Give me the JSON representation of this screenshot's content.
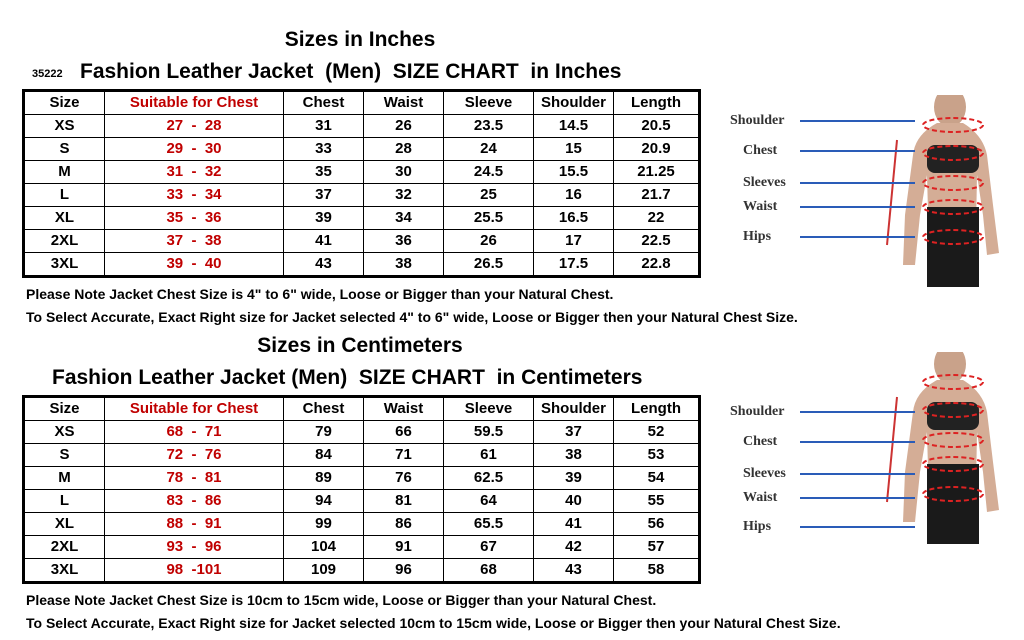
{
  "sections": [
    {
      "heading": "Sizes in Inches",
      "code": "35222",
      "title": "Fashion Leather Jacket  (Men)  SIZE CHART  in Inches",
      "table": {
        "header": [
          "Size",
          "Suitable for Chest",
          "Chest",
          "Waist",
          "Sleeve",
          "Shoulder",
          "Length"
        ],
        "rows": [
          [
            "XS",
            "27  -  28",
            "31",
            "26",
            "23.5",
            "14.5",
            "20.5"
          ],
          [
            "S",
            "29  -  30",
            "33",
            "28",
            "24",
            "15",
            "20.9"
          ],
          [
            "M",
            "31  -  32",
            "35",
            "30",
            "24.5",
            "15.5",
            "21.25"
          ],
          [
            "L",
            "33  -  34",
            "37",
            "32",
            "25",
            "16",
            "21.7"
          ],
          [
            "XL",
            "35  -  36",
            "39",
            "34",
            "25.5",
            "16.5",
            "22"
          ],
          [
            "2XL",
            "37  -  38",
            "41",
            "36",
            "26",
            "17",
            "22.5"
          ],
          [
            "3XL",
            "39  -  40",
            "43",
            "38",
            "26.5",
            "17.5",
            "22.8"
          ]
        ]
      },
      "notes": [
        "Please Note Jacket Chest Size is 4\" to 6\" wide, Loose or Bigger than your Natural Chest.",
        "To Select Accurate, Exact Right size for Jacket selected 4\" to 6\" wide, Loose or Bigger then your Natural Chest Size."
      ],
      "figure": {
        "labels": [
          "Shoulder",
          "Chest",
          "Sleeves",
          "Waist",
          "Hips"
        ]
      }
    },
    {
      "heading": "Sizes in Centimeters",
      "title": "Fashion Leather Jacket (Men)  SIZE CHART  in Centimeters",
      "table": {
        "header": [
          "Size",
          "Suitable for Chest",
          "Chest",
          "Waist",
          "Sleeve",
          "Shoulder",
          "Length"
        ],
        "rows": [
          [
            "XS",
            "68  -  71",
            "79",
            "66",
            "59.5",
            "37",
            "52"
          ],
          [
            "S",
            "72  -  76",
            "84",
            "71",
            "61",
            "38",
            "53"
          ],
          [
            "M",
            "78  -  81",
            "89",
            "76",
            "62.5",
            "39",
            "54"
          ],
          [
            "L",
            "83  -  86",
            "94",
            "81",
            "64",
            "40",
            "55"
          ],
          [
            "XL",
            "88  -  91",
            "99",
            "86",
            "65.5",
            "41",
            "56"
          ],
          [
            "2XL",
            "93  -  96",
            "104",
            "91",
            "67",
            "42",
            "57"
          ],
          [
            "3XL",
            "98  -101",
            "109",
            "96",
            "68",
            "43",
            "58"
          ]
        ]
      },
      "notes": [
        "Please Note Jacket Chest Size is 10cm to 15cm wide, Loose or Bigger than your Natural Chest.",
        "To Select Accurate, Exact Right size for Jacket selected 10cm to 15cm wide, Loose or Bigger then your Natural Chest Size."
      ],
      "figure": {
        "labels": [
          "Shoulder",
          "Chest",
          "Sleeves",
          "Waist",
          "Hips"
        ]
      }
    }
  ]
}
